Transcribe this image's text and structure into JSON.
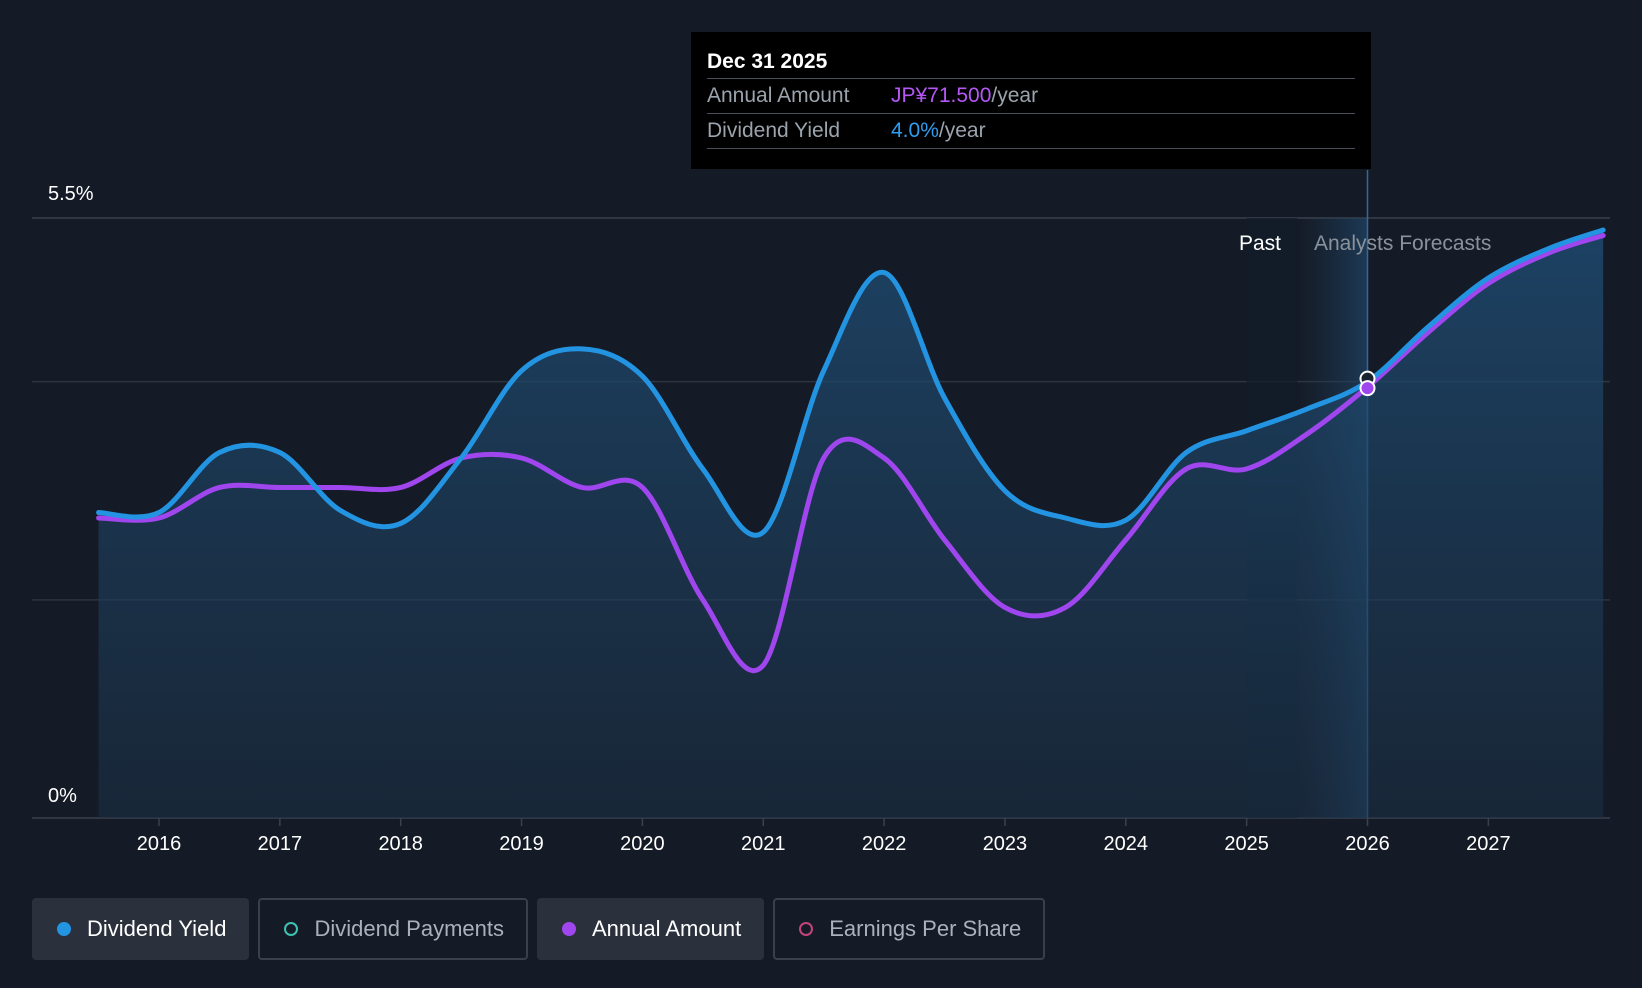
{
  "colors": {
    "background": "#151b26",
    "dividend_yield": "#2394e2",
    "annual_amount": "#a046ee",
    "dividend_payments": "#3dc2b1",
    "earnings_per_share": "#c2447a",
    "grid": "#2c3440"
  },
  "tooltip": {
    "date": "Dec 31 2025",
    "rows": [
      {
        "label": "Annual Amount",
        "value": "JP¥71.500",
        "unit": "/year",
        "color": "#b457f5"
      },
      {
        "label": "Dividend Yield",
        "value": "4.0%",
        "unit": "/year",
        "color": "#2f9df0"
      }
    ]
  },
  "regions": {
    "past_label": "Past",
    "forecast_label": "Analysts Forecasts"
  },
  "legend": [
    {
      "label": "Dividend Yield",
      "icon": "filled-dot",
      "color": "#2394e2",
      "active": true
    },
    {
      "label": "Dividend Payments",
      "icon": "hollow-dot",
      "color": "#3dc2b1",
      "active": false
    },
    {
      "label": "Annual Amount",
      "icon": "filled-dot",
      "color": "#a046ee",
      "active": true
    },
    {
      "label": "Earnings Per Share",
      "icon": "hollow-dot",
      "color": "#c2447a",
      "active": false
    }
  ],
  "chart_data": {
    "type": "line",
    "y_tick_labels": [
      "0%",
      "5.5%"
    ],
    "ylim": [
      0,
      5.5
    ],
    "xlim": [
      2015.0,
      2028.0
    ],
    "x_tick_labels": [
      "2016",
      "2017",
      "2018",
      "2019",
      "2020",
      "2021",
      "2022",
      "2023",
      "2024",
      "2025",
      "2026",
      "2027"
    ],
    "gridlines": [
      5.5,
      4.0,
      2.0
    ],
    "grid": true,
    "past_forecast_divider": 2026.0,
    "highlight_x": 2026.0,
    "series": [
      {
        "name": "Dividend Yield",
        "color": "#2394e2",
        "area": true,
        "points": [
          [
            2015.5,
            2.8
          ],
          [
            2016.0,
            2.8
          ],
          [
            2016.5,
            3.35
          ],
          [
            2017.0,
            3.35
          ],
          [
            2017.5,
            2.82
          ],
          [
            2018.0,
            2.7
          ],
          [
            2018.5,
            3.3
          ],
          [
            2019.0,
            4.1
          ],
          [
            2019.5,
            4.3
          ],
          [
            2020.0,
            4.05
          ],
          [
            2020.5,
            3.2
          ],
          [
            2021.0,
            2.62
          ],
          [
            2021.5,
            4.1
          ],
          [
            2022.0,
            5.0
          ],
          [
            2022.5,
            3.85
          ],
          [
            2023.0,
            3.0
          ],
          [
            2023.5,
            2.75
          ],
          [
            2024.0,
            2.73
          ],
          [
            2024.5,
            3.35
          ],
          [
            2025.0,
            3.55
          ],
          [
            2025.5,
            3.75
          ],
          [
            2026.0,
            4.0
          ],
          [
            2026.5,
            4.5
          ],
          [
            2027.0,
            4.95
          ],
          [
            2027.5,
            5.22
          ],
          [
            2027.95,
            5.39
          ]
        ]
      },
      {
        "name": "Annual Amount",
        "color": "#a046ee",
        "area": false,
        "points": [
          [
            2015.5,
            2.75
          ],
          [
            2016.0,
            2.75
          ],
          [
            2016.5,
            3.03
          ],
          [
            2017.0,
            3.03
          ],
          [
            2017.5,
            3.03
          ],
          [
            2018.0,
            3.03
          ],
          [
            2018.5,
            3.3
          ],
          [
            2019.0,
            3.3
          ],
          [
            2019.5,
            3.03
          ],
          [
            2020.0,
            3.03
          ],
          [
            2020.5,
            2.0
          ],
          [
            2021.0,
            1.4
          ],
          [
            2021.5,
            3.3
          ],
          [
            2022.0,
            3.3
          ],
          [
            2022.5,
            2.55
          ],
          [
            2023.0,
            1.93
          ],
          [
            2023.5,
            1.93
          ],
          [
            2024.0,
            2.55
          ],
          [
            2024.5,
            3.2
          ],
          [
            2025.0,
            3.2
          ],
          [
            2025.5,
            3.52
          ],
          [
            2026.0,
            3.95
          ],
          [
            2026.5,
            4.45
          ],
          [
            2027.0,
            4.9
          ],
          [
            2027.5,
            5.18
          ],
          [
            2027.95,
            5.34
          ]
        ]
      }
    ]
  }
}
